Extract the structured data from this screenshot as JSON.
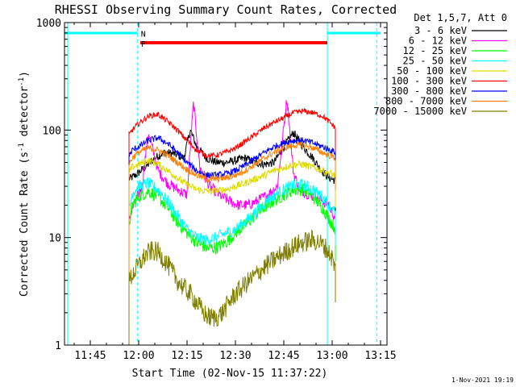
{
  "chart_data": {
    "type": "line",
    "title": "RHESSI Observing Summary Count Rates, Corrected",
    "xlabel": "Start Time (02-Nov-15 11:37:22)",
    "ylabel_main": "Corrected Count Rate (s",
    "ylabel_sup1": "-1",
    "ylabel_mid": " detector",
    "ylabel_sup2": "-1",
    "ylabel_end": ")",
    "yscale": "log",
    "ylim": [
      1,
      1000
    ],
    "xlim": [
      697,
      797
    ],
    "x_unit": "minutes since 00:00 UT",
    "xticks": [
      {
        "t": 705,
        "label": "11:45"
      },
      {
        "t": 720,
        "label": "12:00"
      },
      {
        "t": 735,
        "label": "12:15"
      },
      {
        "t": 750,
        "label": "12:30"
      },
      {
        "t": 765,
        "label": "12:45"
      },
      {
        "t": 780,
        "label": "13:00"
      },
      {
        "t": 795,
        "label": "13:15"
      }
    ],
    "yticks": [
      {
        "v": 1,
        "label": "1"
      },
      {
        "v": 10,
        "label": "10"
      },
      {
        "v": 100,
        "label": "100"
      },
      {
        "v": 1000,
        "label": "1000"
      }
    ],
    "legend_title": "Det 1,5,7, Att 0",
    "legend_placement": "right",
    "series": [
      {
        "name": "3 - 6 keV",
        "color": "#000000",
        "x": [
          717,
          719,
          722,
          725,
          728,
          731,
          734,
          736,
          738,
          741,
          744,
          747,
          750,
          753,
          756,
          759,
          762,
          765,
          768,
          771,
          774,
          776,
          777.5,
          779,
          781
        ],
        "y": [
          35,
          38,
          45,
          55,
          62,
          60,
          55,
          100,
          70,
          55,
          50,
          50,
          52,
          55,
          50,
          48,
          50,
          70,
          95,
          70,
          55,
          45,
          40,
          36,
          34
        ]
      },
      {
        "name": "6 - 12 keV",
        "color": "#ff00ff",
        "x": [
          717,
          719,
          721,
          723,
          726,
          729,
          732,
          735,
          737,
          739,
          742,
          745,
          748,
          751,
          754,
          757,
          760,
          763,
          766,
          768,
          770,
          773,
          776,
          779,
          781
        ],
        "y": [
          15,
          22,
          30,
          95,
          42,
          32,
          28,
          25,
          180,
          45,
          30,
          25,
          22,
          20,
          20,
          22,
          25,
          30,
          200,
          40,
          28,
          25,
          23,
          20,
          15
        ]
      },
      {
        "name": "12 - 25 keV",
        "color": "#00ff00",
        "x": [
          717,
          718,
          720,
          723,
          726,
          729,
          732,
          735,
          738,
          741,
          744,
          747,
          750,
          753,
          756,
          759,
          762,
          765,
          768,
          771,
          774,
          777,
          779,
          781
        ],
        "y": [
          13,
          20,
          24,
          27,
          24,
          19,
          14,
          11,
          9,
          8,
          8,
          9,
          11,
          13,
          16,
          19,
          22,
          25,
          28,
          28,
          24,
          19,
          15,
          12
        ]
      },
      {
        "name": "25 - 50 keV",
        "color": "#00ffff",
        "x": [
          717,
          718,
          720,
          723,
          726,
          729,
          732,
          735,
          738,
          741,
          744,
          747,
          750,
          753,
          756,
          759,
          762,
          765,
          768,
          771,
          774,
          777,
          779,
          781
        ],
        "y": [
          18,
          26,
          30,
          32,
          28,
          22,
          16,
          12,
          10,
          9.5,
          10,
          11,
          12,
          14,
          17,
          21,
          25,
          28,
          31,
          31,
          28,
          24,
          20,
          17
        ]
      },
      {
        "name": "50 - 100 keV",
        "color": "#dddd00",
        "x": [
          717,
          718,
          720,
          723,
          726,
          729,
          732,
          735,
          738,
          741,
          744,
          747,
          750,
          753,
          756,
          759,
          762,
          765,
          768,
          771,
          774,
          777,
          779,
          781
        ],
        "y": [
          40,
          45,
          48,
          52,
          48,
          42,
          36,
          31,
          28,
          27,
          27,
          28,
          30,
          32,
          35,
          38,
          42,
          45,
          48,
          48,
          45,
          42,
          40,
          38
        ]
      },
      {
        "name": "100 - 300 keV",
        "color": "#ff0000",
        "x": [
          717,
          718,
          720,
          723,
          726,
          729,
          732,
          735,
          738,
          741,
          744,
          747,
          750,
          753,
          756,
          759,
          762,
          765,
          768,
          771,
          774,
          777,
          779,
          781
        ],
        "y": [
          90,
          100,
          115,
          135,
          140,
          120,
          100,
          80,
          65,
          58,
          58,
          62,
          68,
          78,
          90,
          105,
          118,
          130,
          145,
          150,
          145,
          135,
          120,
          105
        ]
      },
      {
        "name": "300 - 800 keV",
        "color": "#0000ff",
        "x": [
          717,
          718,
          720,
          723,
          726,
          729,
          732,
          735,
          738,
          741,
          744,
          747,
          750,
          753,
          756,
          759,
          762,
          765,
          768,
          771,
          774,
          777,
          779,
          781
        ],
        "y": [
          57,
          65,
          70,
          80,
          85,
          75,
          62,
          50,
          42,
          38,
          38,
          39,
          42,
          47,
          54,
          62,
          70,
          76,
          80,
          80,
          76,
          70,
          66,
          62
        ]
      },
      {
        "name": "800 - 7000 keV",
        "color": "#ff8000",
        "x": [
          717,
          718,
          720,
          723,
          726,
          729,
          732,
          735,
          738,
          741,
          744,
          747,
          750,
          753,
          756,
          759,
          762,
          765,
          768,
          771,
          774,
          777,
          779,
          781
        ],
        "y": [
          48,
          55,
          62,
          68,
          65,
          58,
          50,
          43,
          38,
          35,
          35,
          36,
          38,
          42,
          48,
          55,
          62,
          68,
          72,
          72,
          68,
          62,
          58,
          55
        ]
      },
      {
        "name": "7000 - 15000 keV",
        "color": "#808000",
        "x": [
          717,
          718,
          720,
          722,
          724,
          726,
          728,
          730,
          732,
          734,
          736,
          738,
          740,
          742,
          744,
          746,
          748,
          750,
          752,
          754,
          756,
          758,
          760,
          762,
          764,
          766,
          768,
          770,
          772,
          774,
          776,
          778,
          780,
          781
        ],
        "y": [
          3.8,
          4.5,
          5.5,
          6.8,
          7.5,
          7.3,
          6.2,
          5.0,
          4.0,
          3.4,
          3.0,
          2.5,
          2.0,
          1.8,
          1.8,
          2.0,
          2.5,
          3.0,
          3.4,
          3.9,
          4.4,
          5.0,
          5.6,
          6.2,
          6.9,
          7.5,
          8.2,
          8.8,
          9.2,
          9.5,
          9.0,
          8.0,
          6.5,
          5.0
        ]
      }
    ],
    "annotations": [
      {
        "text": "N",
        "color": "#00e0e0",
        "x": 719.7,
        "kind": "night",
        "y": 790
      },
      {
        "text": "F",
        "color": "#ff0000",
        "x": 719.7,
        "kind": "flag",
        "y": 640
      }
    ],
    "night_bars": [
      [
        697,
        719.7
      ],
      [
        778.5,
        795
      ]
    ],
    "night_dashed": [
      719.7,
      793.8
    ],
    "night_solid": [
      698,
      778.5
    ],
    "flag_bar": [
      720.5,
      778.5
    ]
  },
  "footer_date": "1-Nov-2021 19:19"
}
